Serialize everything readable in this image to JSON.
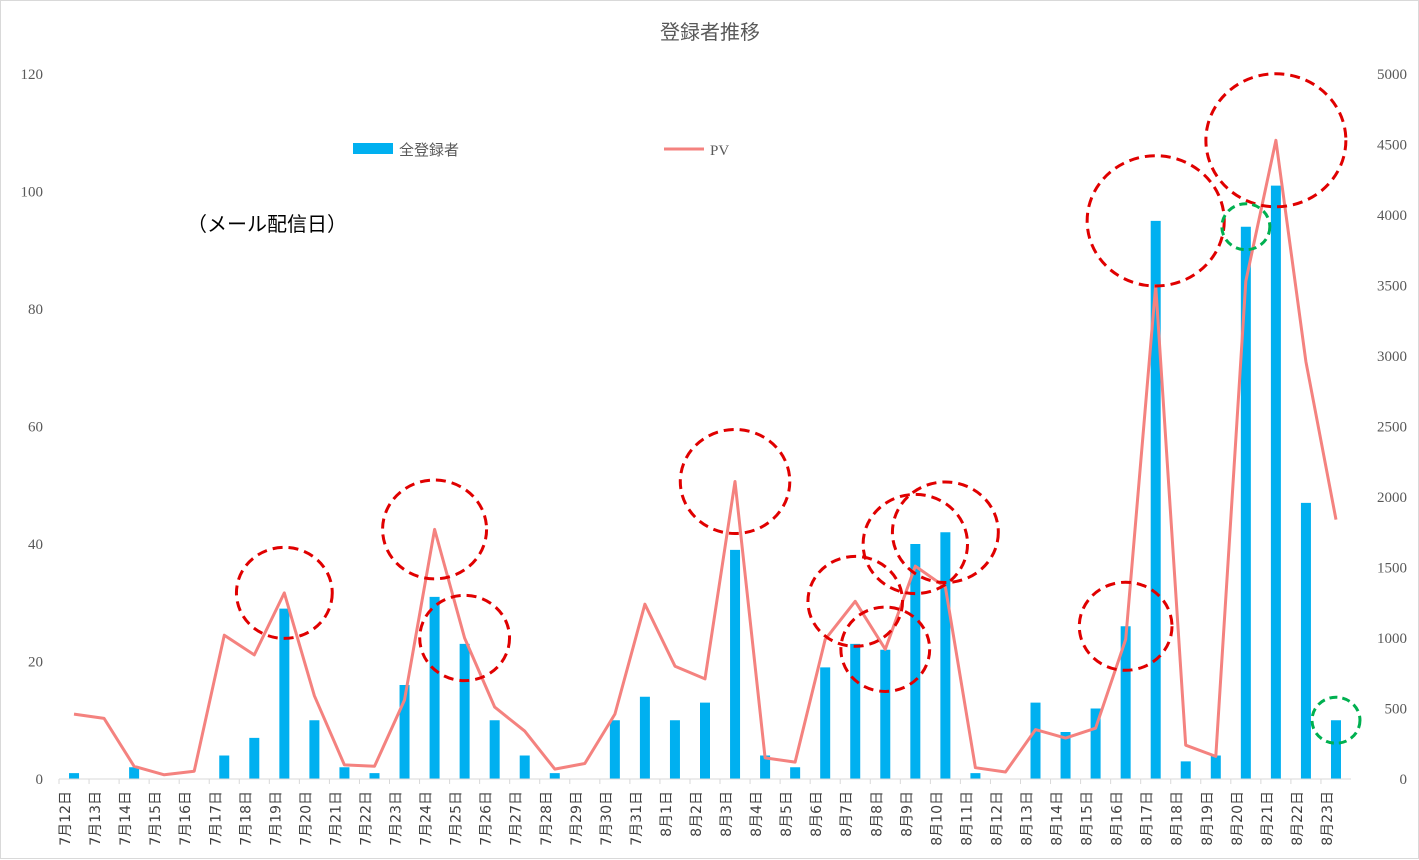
{
  "chart_data": {
    "type": "bar",
    "title": "登録者推移",
    "annotation": "（メール配信日）",
    "categories": [
      "7月12日",
      "7月13日",
      "7月14日",
      "7月15日",
      "7月16日",
      "7月17日",
      "7月18日",
      "7月19日",
      "7月20日",
      "7月21日",
      "7月22日",
      "7月23日",
      "7月24日",
      "7月25日",
      "7月26日",
      "7月27日",
      "7月28日",
      "7月29日",
      "7月30日",
      "7月31日",
      "8月1日",
      "8月2日",
      "8月3日",
      "8月4日",
      "8月5日",
      "8月6日",
      "8月7日",
      "8月8日",
      "8月9日",
      "8月10日",
      "8月11日",
      "8月12日",
      "8月13日",
      "8月14日",
      "8月15日",
      "8月16日",
      "8月17日",
      "8月18日",
      "8月19日",
      "8月20日",
      "8月21日",
      "8月22日",
      "8月23日"
    ],
    "series": [
      {
        "name": "全登録者",
        "type": "bar",
        "axis": "left",
        "color": "#00b0f0",
        "values": [
          1,
          0,
          2,
          0,
          0,
          4,
          7,
          29,
          10,
          2,
          1,
          16,
          31,
          23,
          10,
          4,
          1,
          0,
          10,
          14,
          10,
          13,
          39,
          4,
          2,
          19,
          23,
          22,
          40,
          42,
          1,
          0,
          13,
          8,
          12,
          26,
          95,
          3,
          4,
          94,
          101,
          47,
          10
        ]
      },
      {
        "name": "PV",
        "type": "line",
        "axis": "right",
        "color": "#f4827f",
        "values": [
          460,
          430,
          90,
          30,
          55,
          1020,
          880,
          1320,
          590,
          100,
          90,
          560,
          1770,
          1000,
          510,
          340,
          70,
          110,
          460,
          1240,
          800,
          710,
          2110,
          150,
          120,
          990,
          1260,
          920,
          1510,
          1360,
          80,
          50,
          350,
          290,
          360,
          990,
          3500,
          240,
          160,
          3530,
          4530,
          2960,
          1840
        ]
      }
    ],
    "y_left": {
      "min": 0,
      "max": 120,
      "ticks": [
        "0",
        "20",
        "40",
        "60",
        "80",
        "100",
        "120"
      ]
    },
    "y_right": {
      "min": 0,
      "max": 5000,
      "ticks": [
        "0",
        "500",
        "1000",
        "1500",
        "2000",
        "2500",
        "3000",
        "3500",
        "4000",
        "4500",
        "5000"
      ]
    },
    "legend_position": "top",
    "grid": false,
    "highlights": {
      "red_dashed_circles_at": [
        "7月19日",
        "7月24日",
        "7月25日",
        "8月3日",
        "8月7日",
        "8月8日",
        "8月9日",
        "8月10日",
        "8月16日",
        "8月17日",
        "8月21日"
      ],
      "green_dashed_circles_at": [
        "8月20日",
        "8月23日"
      ],
      "red_color": "#e00000",
      "green_color": "#00b050"
    }
  }
}
